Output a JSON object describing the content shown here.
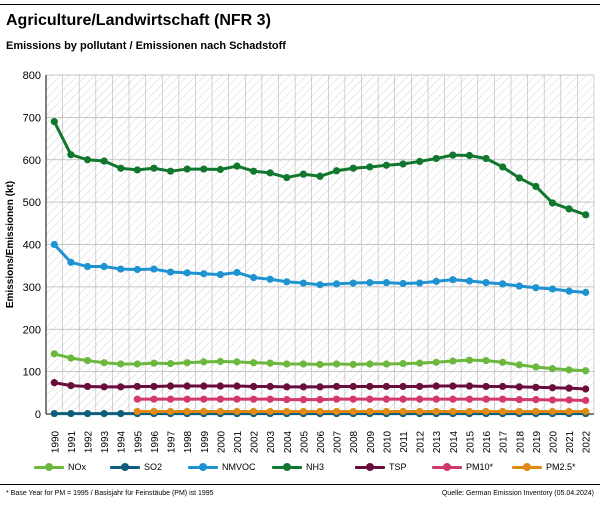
{
  "header": {
    "title": "Agriculture/Landwirtschaft (NFR 3)",
    "subtitle": "Emissions by pollutant / Emissionen nach Schadstoff"
  },
  "footer": {
    "footnote": "* Base Year for PM = 1995 / Basisjahr für Feinstäube (PM) ist 1995",
    "source": "Quelle: German Emission Inventory (05.04.2024)"
  },
  "chart_data": {
    "type": "line",
    "title": "Emissions by pollutant / Emissionen nach Schadstoff",
    "xlabel": "",
    "ylabel": "Emissions/Emissionen (kt)",
    "ylim": [
      0,
      800
    ],
    "yticks": [
      0,
      100,
      200,
      300,
      400,
      500,
      600,
      700,
      800
    ],
    "grid": true,
    "legend_position": "bottom",
    "x": [
      1990,
      1991,
      1992,
      1993,
      1994,
      1995,
      1996,
      1997,
      1998,
      1999,
      2000,
      2001,
      2002,
      2003,
      2004,
      2005,
      2006,
      2007,
      2008,
      2009,
      2010,
      2011,
      2012,
      2013,
      2014,
      2015,
      2016,
      2017,
      2018,
      2019,
      2020,
      2021,
      2022
    ],
    "series": [
      {
        "name": "NOx",
        "color": "#6cb83f",
        "values": [
          142,
          132,
          126,
          121,
          118,
          118,
          120,
          119,
          121,
          123,
          124,
          123,
          121,
          120,
          118,
          118,
          117,
          118,
          117,
          118,
          118,
          119,
          120,
          122,
          125,
          127,
          126,
          122,
          116,
          111,
          107,
          104,
          102
        ]
      },
      {
        "name": "SO2",
        "color": "#0f5c7c",
        "values": [
          1,
          1,
          1,
          1,
          1,
          1,
          1,
          1,
          1,
          1,
          1,
          1,
          1,
          1,
          1,
          1,
          1,
          1,
          1,
          1,
          1,
          1,
          1,
          1,
          1,
          1,
          1,
          1,
          1,
          1,
          1,
          1,
          1
        ]
      },
      {
        "name": "NMVOC",
        "color": "#1f93d2",
        "values": [
          400,
          358,
          348,
          348,
          342,
          341,
          342,
          335,
          333,
          331,
          329,
          334,
          322,
          318,
          312,
          309,
          305,
          307,
          309,
          310,
          310,
          308,
          309,
          313,
          317,
          314,
          310,
          307,
          302,
          298,
          295,
          290,
          287
        ]
      },
      {
        "name": "NH3",
        "color": "#12772e",
        "values": [
          690,
          612,
          600,
          597,
          580,
          576,
          580,
          573,
          578,
          578,
          577,
          585,
          573,
          569,
          558,
          566,
          561,
          574,
          580,
          583,
          587,
          590,
          596,
          603,
          611,
          610,
          603,
          583,
          557,
          537,
          498,
          484,
          470
        ]
      },
      {
        "name": "TSP",
        "color": "#6b0d3b",
        "values": [
          74,
          67,
          65,
          64,
          64,
          65,
          65,
          66,
          66,
          66,
          66,
          66,
          65,
          65,
          64,
          64,
          64,
          65,
          65,
          65,
          65,
          65,
          65,
          66,
          66,
          66,
          65,
          65,
          64,
          63,
          62,
          61,
          59
        ]
      },
      {
        "name": "PM10*",
        "color": "#d1386c",
        "values": [
          null,
          null,
          null,
          null,
          null,
          35,
          35,
          35,
          35,
          35,
          35,
          35,
          35,
          35,
          34,
          34,
          34,
          35,
          35,
          35,
          35,
          35,
          35,
          35,
          35,
          35,
          35,
          35,
          34,
          34,
          33,
          33,
          32
        ]
      },
      {
        "name": "PM2.5*",
        "color": "#e08a12",
        "values": [
          null,
          null,
          null,
          null,
          null,
          6,
          6,
          6,
          6,
          6,
          6,
          6,
          6,
          6,
          6,
          6,
          6,
          6,
          6,
          6,
          6,
          6,
          6,
          6,
          6,
          6,
          6,
          6,
          6,
          6,
          6,
          6,
          6
        ]
      }
    ]
  }
}
